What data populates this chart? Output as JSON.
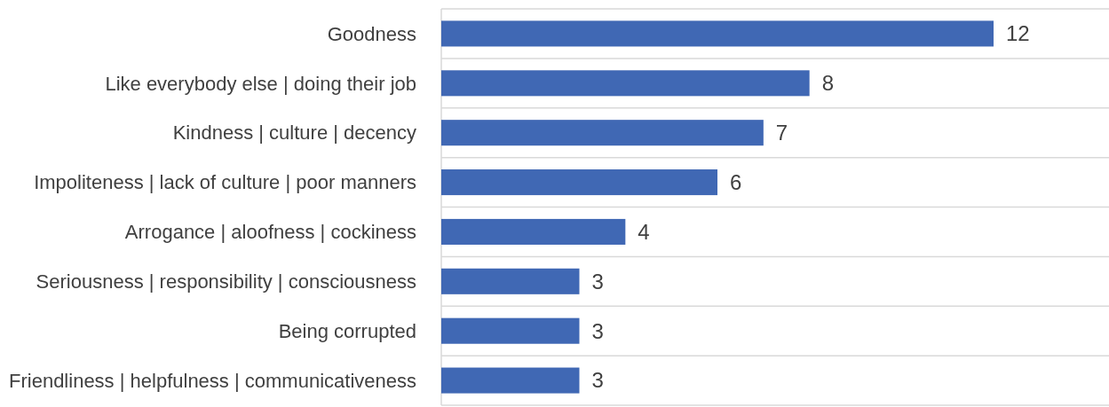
{
  "chart_data": {
    "type": "bar",
    "orientation": "horizontal",
    "categories": [
      "Goodness",
      "Like everybody else | doing their job",
      "Kindness | culture | decency",
      "Impoliteness | lack of culture | poor manners",
      "Arrogance | aloofness | cockiness",
      "Seriousness | responsibility | consciousness",
      "Being corrupted",
      "Friendliness | helpfulness | communicativeness"
    ],
    "values": [
      12,
      8,
      7,
      6,
      4,
      3,
      3,
      3
    ],
    "color": "#4068b4",
    "data_labels": true,
    "grid": "y"
  }
}
